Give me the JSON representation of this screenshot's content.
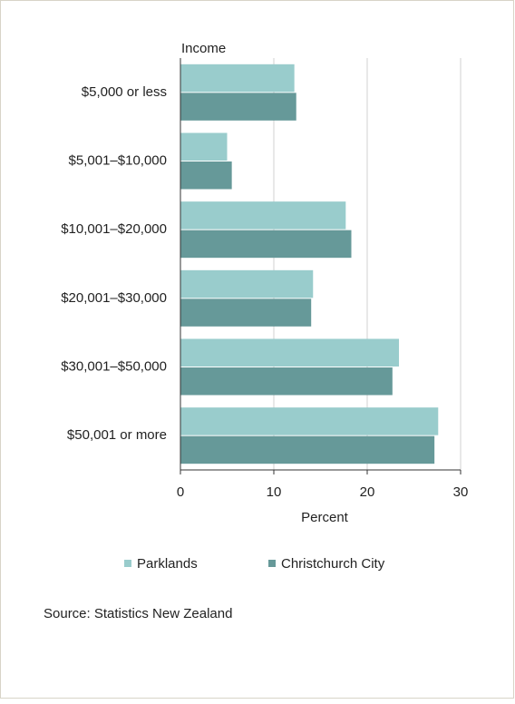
{
  "chart_data": {
    "type": "bar",
    "orientation": "horizontal",
    "y_label": "Income",
    "x_label": "Percent",
    "categories": [
      "$5,000 or less",
      "$5,001–$10,000",
      "$10,001–$20,000",
      "$20,001–$30,000",
      "$30,001–$50,000",
      "$50,001 or more"
    ],
    "series": [
      {
        "name": "Parklands",
        "color": "#99cccc",
        "values": [
          12.2,
          5.0,
          17.7,
          14.2,
          23.4,
          27.6
        ]
      },
      {
        "name": "Christchurch City",
        "color": "#669999",
        "values": [
          12.4,
          5.5,
          18.3,
          14.0,
          22.7,
          27.2
        ]
      }
    ],
    "xlim": [
      0,
      30
    ],
    "xticks": [
      0,
      10,
      20,
      30
    ],
    "grid": true,
    "source": "Source: Statistics New Zealand"
  }
}
